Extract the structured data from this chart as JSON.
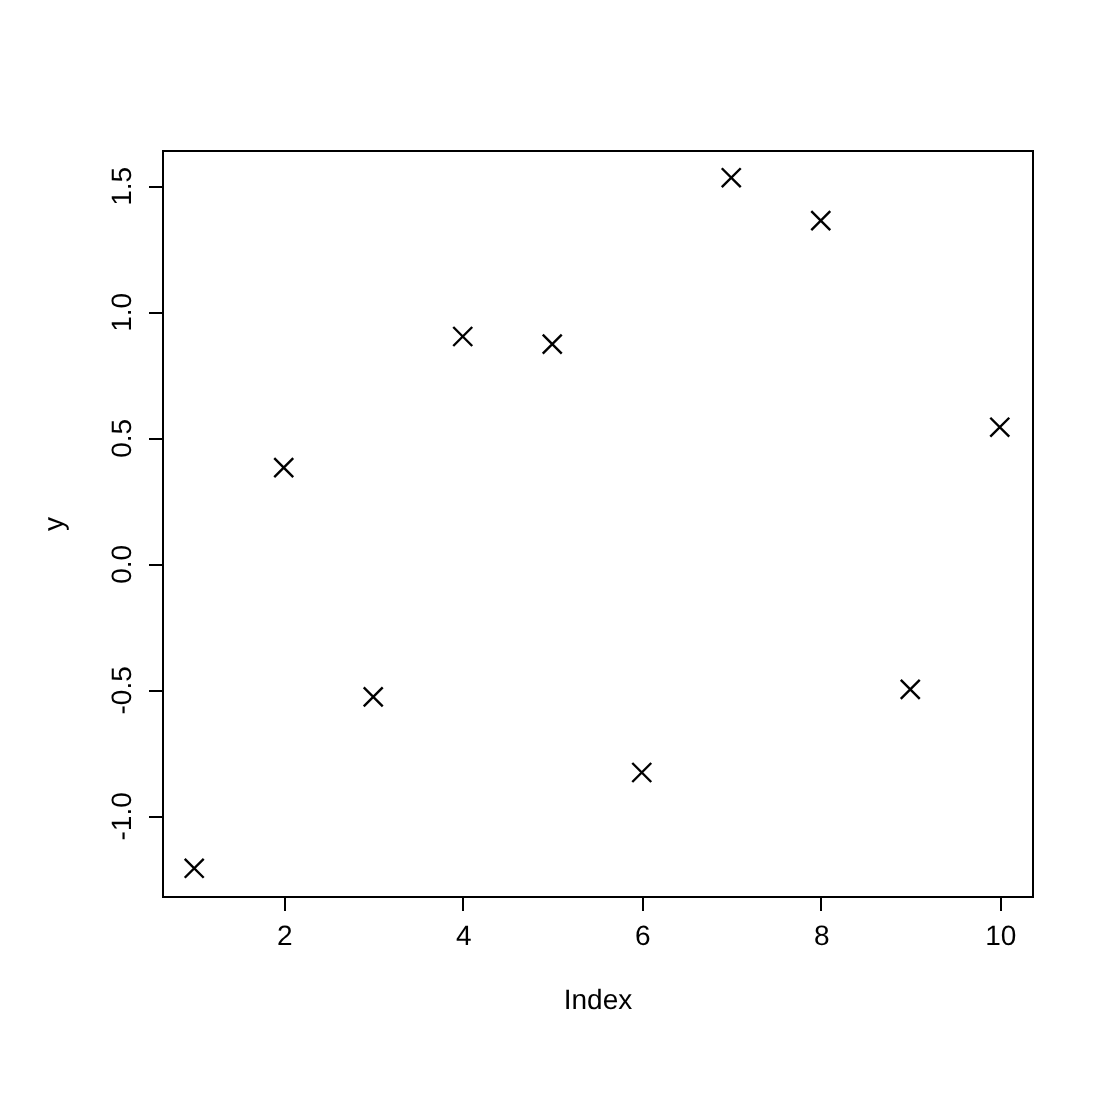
{
  "chart_data": {
    "type": "scatter",
    "xlabel": "Index",
    "ylabel": "y",
    "x": [
      1,
      2,
      3,
      4,
      5,
      6,
      7,
      8,
      9,
      10
    ],
    "values": [
      -1.21,
      0.38,
      -0.53,
      0.9,
      0.87,
      -0.83,
      1.53,
      1.36,
      -0.5,
      0.54
    ],
    "color": "#000000",
    "marker": "cross",
    "xlim": [
      0.64,
      10.36
    ],
    "xticks": [
      2,
      4,
      6,
      8,
      10
    ],
    "ylim": [
      -1.32,
      1.64
    ],
    "yticks": [
      {
        "value": -1,
        "label": "-1.0"
      },
      -0.5,
      {
        "value": 0,
        "label": "0.0"
      },
      0.5,
      {
        "value": 1,
        "label": "1.0"
      },
      1.5
    ],
    "grid": false
  }
}
